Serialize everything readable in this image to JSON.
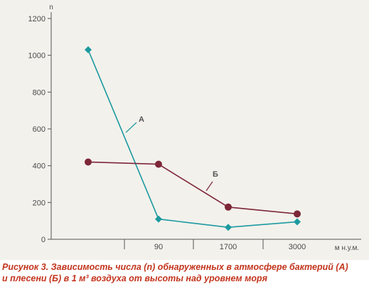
{
  "chart_data": {
    "type": "line",
    "title": "",
    "xlabel": "м н.у.м.",
    "ylabel": "n",
    "ylim": [
      0,
      1200
    ],
    "yticks": [
      "0",
      "200",
      "400",
      "600",
      "800",
      "1000",
      "1200"
    ],
    "xticks": [
      "",
      "90",
      "1700",
      "3000"
    ],
    "x_categories": [
      "",
      "90",
      "1700",
      "3000"
    ],
    "series": [
      {
        "name": "А",
        "values": [
          1030,
          110,
          65,
          95
        ],
        "color": "#1b9aa0",
        "marker": "diamond"
      },
      {
        "name": "Б",
        "values": [
          420,
          408,
          175,
          138
        ],
        "color": "#7d2738",
        "marker": "circle"
      }
    ],
    "grid": false
  },
  "caption": {
    "line1": "Рисунок 3. Зависимость числа (n) обнаруженных в атмосфере бактерий (А)",
    "line2": "и плесени (Б) в 1 м³ воздуха от высоты над уровнем моря"
  },
  "colors": {
    "panel_background": "#f3f1ec",
    "caption_text": "#c3351e",
    "axis": "#555555"
  }
}
